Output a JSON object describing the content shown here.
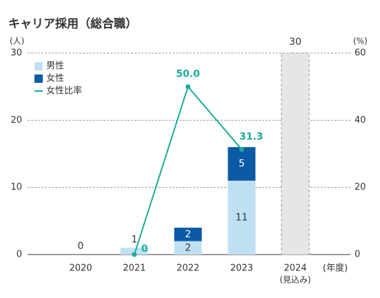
{
  "chart_data": {
    "type": "bar",
    "title": "キャリア採用（総合職）",
    "ylabel": "(人)",
    "y2label": "(%)",
    "xlabel": "(年度)",
    "categories": [
      "2020",
      "2021",
      "2022",
      "2023",
      "2024"
    ],
    "category_sublabels": [
      null,
      null,
      null,
      null,
      "(見込み)"
    ],
    "ylim": [
      0,
      30
    ],
    "yticks": [
      0,
      10,
      20,
      30
    ],
    "y2lim": [
      0,
      60
    ],
    "y2ticks": [
      0,
      20,
      40,
      60
    ],
    "grid": true,
    "legend": "upper left",
    "series": [
      {
        "name": "男性",
        "color": "#bfe0f2",
        "values": [
          0,
          1,
          2,
          11,
          null
        ]
      },
      {
        "name": "女性",
        "color": "#0b5aa6",
        "values": [
          0,
          0,
          2,
          5,
          null
        ]
      },
      {
        "name": "女性比率",
        "type": "line",
        "axis": "y2",
        "color": "#1aab9a",
        "values": [
          null,
          0,
          50.0,
          31.3,
          null
        ],
        "value_labels": [
          null,
          "0",
          "50.0",
          "31.3",
          null
        ]
      }
    ],
    "forecast": {
      "color": "#e6e6e6",
      "values": [
        null,
        null,
        null,
        null,
        30
      ]
    }
  }
}
